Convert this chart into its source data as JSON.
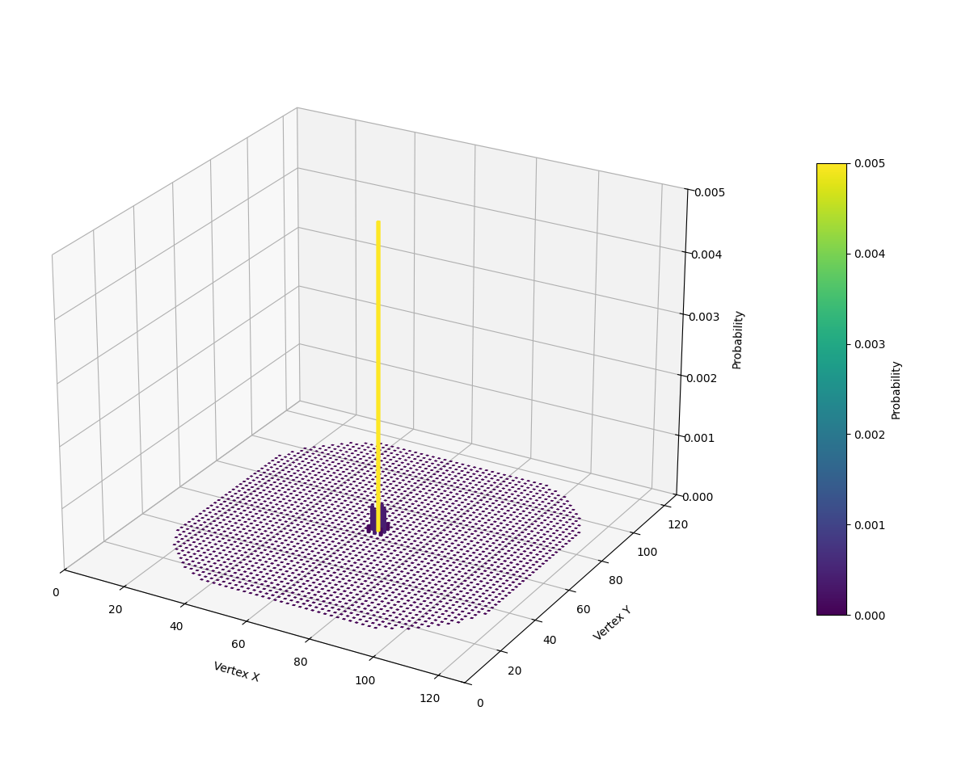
{
  "N": 128,
  "steps": 50,
  "colormap": "viridis",
  "xlabel": "Vertex X",
  "ylabel": "Vertex Y",
  "zlabel": "Probability",
  "zlim": [
    0,
    0.005
  ],
  "zticks": [
    0.0,
    0.001,
    0.002,
    0.003,
    0.004,
    0.005
  ],
  "xticks": [
    0,
    20,
    40,
    60,
    80,
    100,
    120
  ],
  "yticks": [
    0,
    20,
    40,
    60,
    80,
    100,
    120
  ],
  "figsize": [
    12.0,
    9.63
  ],
  "dpi": 100,
  "elev": 25,
  "azim": -60,
  "colorbar_label": "Probability",
  "max_prob": 0.005,
  "bar_width": 0.8
}
